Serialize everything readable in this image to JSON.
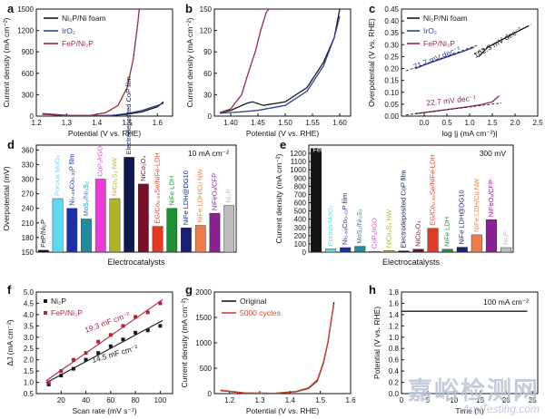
{
  "watermark": {
    "text": "嘉峪检测网",
    "sub": "AnyTesting.com"
  },
  "chart_data": [
    {
      "id": "a",
      "type": "line",
      "panel_label": "a",
      "xlabel": "Potential (V vs. RHE)",
      "ylabel": "Current density (mA cm⁻²)",
      "xlim": [
        1.2,
        1.65
      ],
      "ylim": [
        0,
        1500
      ],
      "xticks": [
        1.2,
        1.3,
        1.4,
        1.5,
        1.6
      ],
      "yticks": [
        0,
        300,
        600,
        900,
        1200,
        1500
      ],
      "legend": [
        "Ni₂P/Ni foam",
        "IrO₂",
        "FeP/Ni₂P"
      ],
      "series": [
        {
          "name": "Ni₂P/Ni foam",
          "color": "#1a1a1a",
          "x": [
            1.22,
            1.3,
            1.38,
            1.45,
            1.5,
            1.55,
            1.6,
            1.62
          ],
          "y": [
            30,
            6,
            3,
            8,
            25,
            60,
            130,
            200
          ]
        },
        {
          "name": "IrO₂",
          "color": "#2e3f9e",
          "x": [
            1.22,
            1.3,
            1.38,
            1.45,
            1.5,
            1.55,
            1.6,
            1.62
          ],
          "y": [
            35,
            10,
            4,
            10,
            35,
            80,
            150,
            180
          ]
        },
        {
          "name": "FeP/Ni₂P",
          "color": "#8e2f3a",
          "x": [
            1.22,
            1.3,
            1.38,
            1.43,
            1.47,
            1.5,
            1.52,
            1.535,
            1.54
          ],
          "y": [
            25,
            8,
            10,
            50,
            150,
            400,
            800,
            1300,
            1500
          ]
        }
      ]
    },
    {
      "id": "b",
      "type": "line",
      "panel_label": "b",
      "xlabel": "Potential (V vs. RHE)",
      "ylabel": "Current density (mA cm⁻²)",
      "xlim": [
        1.37,
        1.62
      ],
      "ylim": [
        0,
        150
      ],
      "xticks": [
        1.4,
        1.45,
        1.5,
        1.55,
        1.6
      ],
      "yticks": [
        0,
        30,
        60,
        90,
        120,
        150
      ],
      "series": [
        {
          "name": "Ni₂P/Ni foam",
          "color": "#1a1a1a",
          "x": [
            1.38,
            1.4,
            1.43,
            1.44,
            1.46,
            1.5,
            1.54,
            1.57,
            1.59,
            1.6
          ],
          "y": [
            5,
            8,
            18,
            20,
            15,
            20,
            40,
            75,
            110,
            150
          ]
        },
        {
          "name": "IrO₂",
          "color": "#2e3f9e",
          "x": [
            1.38,
            1.42,
            1.45,
            1.5,
            1.54,
            1.57,
            1.59,
            1.6
          ],
          "y": [
            4,
            6,
            8,
            15,
            35,
            70,
            110,
            140
          ]
        },
        {
          "name": "FeP/Ni₂P",
          "color": "#8e2f3a",
          "x": [
            1.38,
            1.4,
            1.42,
            1.43,
            1.445,
            1.455,
            1.465,
            1.47
          ],
          "y": [
            5,
            10,
            30,
            55,
            90,
            120,
            145,
            150
          ]
        }
      ]
    },
    {
      "id": "c",
      "type": "line",
      "panel_label": "c",
      "xlabel": "log |j (mA cm⁻²)|",
      "ylabel": "Overpotential (V vs. RHE)",
      "xlim": [
        -0.5,
        2.5
      ],
      "ylim": [
        0,
        0.45
      ],
      "xticks": [
        0.0,
        0.5,
        1.0,
        1.5,
        2.0,
        2.5
      ],
      "yticks": [
        0.0,
        0.05,
        0.1,
        0.15,
        0.2,
        0.25,
        0.3,
        0.35,
        0.4,
        0.45
      ],
      "legend": [
        "Ni₂P/Ni foam",
        "IrO₂",
        "FeP/Ni₂P"
      ],
      "tafel_slopes": [
        "102.3 mV dec⁻¹",
        "71.7 mV dec⁻¹",
        "22.7 mV dec⁻¹"
      ],
      "series": [
        {
          "name": "Ni₂P/Ni foam",
          "color": "#1a1a1a",
          "x": [
            1.2,
            1.4,
            1.6,
            1.8,
            2.0,
            2.2,
            2.3
          ],
          "y": [
            0.25,
            0.29,
            0.31,
            0.33,
            0.35,
            0.37,
            0.38
          ]
        },
        {
          "name": "IrO₂",
          "color": "#2e3f9e",
          "x": [
            -0.2,
            0.0,
            0.3,
            0.6,
            0.9,
            1.1
          ],
          "y": [
            0.2,
            0.215,
            0.235,
            0.255,
            0.275,
            0.29
          ]
        },
        {
          "name": "FeP/Ni₂P",
          "color": "#8e2f3a",
          "x": [
            -0.2,
            0.2,
            0.6,
            1.0,
            1.3,
            1.5,
            1.65
          ],
          "y": [
            0.01,
            0.02,
            0.03,
            0.04,
            0.05,
            0.06,
            0.085
          ]
        }
      ]
    },
    {
      "id": "d",
      "type": "bar",
      "panel_label": "d",
      "xlabel": "Electrocatalysts",
      "ylabel": "Overpotential (mV)",
      "ylim": [
        150,
        370
      ],
      "yticks": [
        150,
        180,
        210,
        240,
        270,
        300,
        330,
        360
      ],
      "annotation": "10 mA cm⁻²",
      "categories": [
        "FeP/Ni₂P",
        "Porous MoO₂",
        "Ni₀.₆₉Co₀.₃₁P film",
        "MoS₂/Ni₃S₂",
        "CoP₂/rGO",
        "NiCo₂S₄ NW",
        "Electrodeposited CoP film",
        "NiCo₂O₄",
        "EG/Co₀.₈₅Se/NiFe-LDH",
        "NiFe LDH",
        "NiFe LDH@DG10",
        "NiFe LDH/Cu NW",
        "NiFeOₓ/CFP",
        "Ni₂P"
      ],
      "values": [
        154,
        260,
        240,
        218,
        300,
        260,
        345,
        290,
        203,
        240,
        200,
        205,
        230,
        246
      ],
      "colors": [
        "#141414",
        "#5ed8ef",
        "#1c2fa6",
        "#1d8c9c",
        "#ee3bd7",
        "#b3b31e",
        "#0d1a52",
        "#7a1028",
        "#e33a26",
        "#1f8f34",
        "#18207a",
        "#f17a46",
        "#8b1f95",
        "#bdbdbd"
      ]
    },
    {
      "id": "e",
      "type": "bar",
      "panel_label": "e",
      "xlabel": "Electrocatalysts",
      "ylabel": "Current density (mA cm⁻²)",
      "ylim": [
        0,
        1300
      ],
      "yticks": [
        0,
        100,
        200,
        300,
        400,
        500,
        600,
        700,
        800,
        900,
        1000,
        1100,
        1200
      ],
      "annotation": "300 mV",
      "categories": [
        "FeP/Ni₂P",
        "Porous MoO₂",
        "Ni₀.₆₉Co₀.₃₁P film",
        "MoS₂/Ni₃S₂",
        "CoP₂/rGO",
        "NiCo₂S₄ NW",
        "Electrodeposited CoP film",
        "NiCo₂O₄",
        "EG/Co₀.₈₅Se/NiFe-LDH",
        "NiFe LDH",
        "NiFe LDH@DG10",
        "NiFe LDH/Cu NW",
        "NiFeOₓ/CFP",
        "Ni₂P"
      ],
      "values": [
        1260,
        40,
        55,
        70,
        10,
        20,
        15,
        35,
        290,
        35,
        60,
        210,
        395,
        55
      ],
      "colors": [
        "#141414",
        "#5ed8ef",
        "#1c2fa6",
        "#1d8c9c",
        "#ee3bd7",
        "#b3b31e",
        "#0d1a52",
        "#7a1028",
        "#e33a26",
        "#1f8f34",
        "#18207a",
        "#f17a46",
        "#8b1f95",
        "#bdbdbd"
      ]
    },
    {
      "id": "f",
      "type": "scatter",
      "panel_label": "f",
      "xlabel": "Scan rate (mV s⁻¹)",
      "ylabel": "ΔJ (mA cm⁻²)",
      "xlim": [
        0,
        110
      ],
      "ylim": [
        0.5,
        5.0
      ],
      "xticks": [
        20,
        40,
        60,
        80,
        100
      ],
      "yticks": [
        0.5,
        1.0,
        1.5,
        2.0,
        2.5,
        3.0,
        3.5,
        4.0,
        4.5,
        5.0
      ],
      "legend": [
        "Ni₂P",
        "FeP/Ni₂P"
      ],
      "fit_labels": [
        "19.3 mF cm⁻²",
        "14.5 mF cm⁻²"
      ],
      "series": [
        {
          "name": "Ni₂P",
          "color": "#1a1a1a",
          "x": [
            10,
            20,
            30,
            40,
            50,
            60,
            70,
            80,
            90,
            100
          ],
          "y": [
            0.9,
            1.3,
            1.6,
            2.0,
            2.3,
            2.6,
            2.9,
            3.2,
            3.3,
            3.5
          ]
        },
        {
          "name": "FeP/Ni₂P",
          "color": "#b0243a",
          "x": [
            10,
            20,
            30,
            40,
            50,
            60,
            70,
            80,
            90,
            100
          ],
          "y": [
            1.0,
            1.5,
            2.0,
            2.3,
            2.8,
            3.1,
            3.5,
            3.9,
            4.1,
            4.5
          ]
        }
      ]
    },
    {
      "id": "g",
      "type": "line",
      "panel_label": "g",
      "xlabel": "Potential (V vs. RHE)",
      "ylabel": "Current density (mA cm⁻²)",
      "xlim": [
        1.15,
        1.6
      ],
      "ylim": [
        0,
        2000
      ],
      "xticks": [
        1.2,
        1.3,
        1.4,
        1.5,
        1.6
      ],
      "yticks": [
        0,
        500,
        1000,
        1500,
        2000
      ],
      "legend": [
        "Original",
        "5000 cycles"
      ],
      "series": [
        {
          "name": "Original",
          "color": "#1a1a1a",
          "x": [
            1.17,
            1.25,
            1.35,
            1.42,
            1.46,
            1.49,
            1.51,
            1.525,
            1.535,
            1.545
          ],
          "y": [
            60,
            10,
            5,
            40,
            100,
            250,
            600,
            1000,
            1400,
            1800
          ]
        },
        {
          "name": "5000 cycles",
          "color": "#d9442f",
          "x": [
            1.17,
            1.25,
            1.35,
            1.42,
            1.46,
            1.49,
            1.51,
            1.525,
            1.535,
            1.545
          ],
          "y": [
            70,
            15,
            8,
            45,
            110,
            270,
            620,
            1020,
            1420,
            1760
          ]
        }
      ]
    },
    {
      "id": "h",
      "type": "line",
      "panel_label": "h",
      "xlabel": "Time (h)",
      "ylabel": "Potential (V vs. RHE)",
      "xlim": [
        0,
        26
      ],
      "ylim": [
        0.0,
        1.8
      ],
      "xticks": [
        0,
        5,
        10,
        15,
        20,
        25
      ],
      "yticks": [
        0.0,
        0.2,
        0.4,
        0.6,
        0.8,
        1.0,
        1.2,
        1.4,
        1.6,
        1.8
      ],
      "annotation": "100 mA cm⁻²",
      "series": [
        {
          "name": "Potential",
          "color": "#1a1a1a",
          "x": [
            0,
            5,
            10,
            15,
            20,
            24
          ],
          "y": [
            1.46,
            1.46,
            1.46,
            1.46,
            1.46,
            1.46
          ]
        }
      ]
    }
  ]
}
